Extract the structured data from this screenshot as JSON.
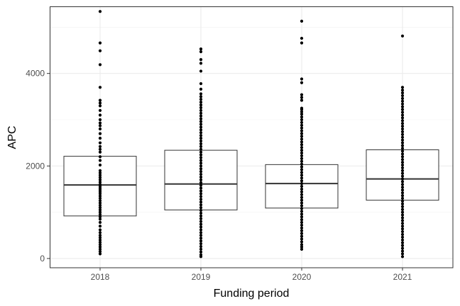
{
  "chart_data": {
    "type": "boxplot",
    "title": "",
    "xlabel": "Funding period",
    "ylabel": "APC",
    "categories": [
      "2018",
      "2019",
      "2020",
      "2021"
    ],
    "ylim": [
      -200,
      5450
    ],
    "y_ticks": [
      0,
      2000,
      4000
    ],
    "y_tick_labels": [
      "0",
      "2000",
      "4000"
    ],
    "grid": true,
    "theme": "bw",
    "boxes": [
      {
        "category": "2018",
        "q1": 920,
        "median": 1590,
        "q3": 2210
      },
      {
        "category": "2019",
        "q1": 1050,
        "median": 1610,
        "q3": 2340
      },
      {
        "category": "2020",
        "q1": 1090,
        "median": 1620,
        "q3": 2030
      },
      {
        "category": "2021",
        "q1": 1260,
        "median": 1720,
        "q3": 2350
      }
    ],
    "points": {
      "2018": [
        5340,
        4660,
        4490,
        4190,
        3700,
        3420,
        3360,
        3300,
        3200,
        3100,
        3000,
        2930,
        2870,
        2800,
        2700,
        2600,
        2500,
        2420,
        2360,
        2300,
        2200,
        2120,
        2020,
        1900,
        1850,
        1800,
        1750,
        1700,
        1650,
        1600,
        1560,
        1520,
        1480,
        1440,
        1400,
        1350,
        1300,
        1250,
        1200,
        1150,
        1100,
        1050,
        1000,
        950,
        900,
        850,
        780,
        700,
        620,
        560,
        500,
        450,
        400,
        350,
        300,
        250,
        200,
        150,
        100
      ],
      "2019": [
        4530,
        4470,
        4300,
        4220,
        4050,
        3780,
        3660,
        3560,
        3500,
        3440,
        3380,
        3320,
        3260,
        3200,
        3140,
        3080,
        3020,
        2960,
        2900,
        2840,
        2780,
        2720,
        2660,
        2600,
        2540,
        2480,
        2420,
        2360,
        2300,
        2240,
        2180,
        2120,
        2060,
        2000,
        1940,
        1880,
        1820,
        1760,
        1700,
        1640,
        1580,
        1520,
        1460,
        1400,
        1340,
        1280,
        1220,
        1160,
        1100,
        1040,
        980,
        920,
        860,
        800,
        740,
        680,
        620,
        560,
        500,
        440,
        380,
        320,
        260,
        200,
        140,
        80,
        40
      ],
      "2020": [
        5130,
        4760,
        4660,
        3880,
        3800,
        3540,
        3480,
        3420,
        3250,
        3220,
        3170,
        3120,
        3060,
        3000,
        2940,
        2880,
        2820,
        2760,
        2700,
        2640,
        2580,
        2520,
        2460,
        2400,
        2340,
        2280,
        2220,
        2160,
        2100,
        2040,
        1980,
        1920,
        1860,
        1800,
        1740,
        1680,
        1620,
        1560,
        1500,
        1440,
        1380,
        1320,
        1260,
        1200,
        1140,
        1080,
        1020,
        960,
        900,
        840,
        780,
        720,
        660,
        600,
        540,
        480,
        420,
        360,
        300,
        250,
        200
      ],
      "2021": [
        4810,
        3700,
        3640,
        3580,
        3520,
        3460,
        3400,
        3340,
        3280,
        3220,
        3160,
        3100,
        3040,
        2980,
        2920,
        2860,
        2800,
        2740,
        2680,
        2620,
        2560,
        2500,
        2440,
        2380,
        2320,
        2260,
        2200,
        2140,
        2080,
        2020,
        1960,
        1900,
        1840,
        1780,
        1720,
        1660,
        1600,
        1540,
        1480,
        1420,
        1360,
        1300,
        1240,
        1180,
        1120,
        1060,
        1000,
        940,
        880,
        820,
        760,
        700,
        640,
        580,
        520,
        460,
        400,
        340,
        280,
        220,
        160,
        100,
        40
      ]
    }
  }
}
